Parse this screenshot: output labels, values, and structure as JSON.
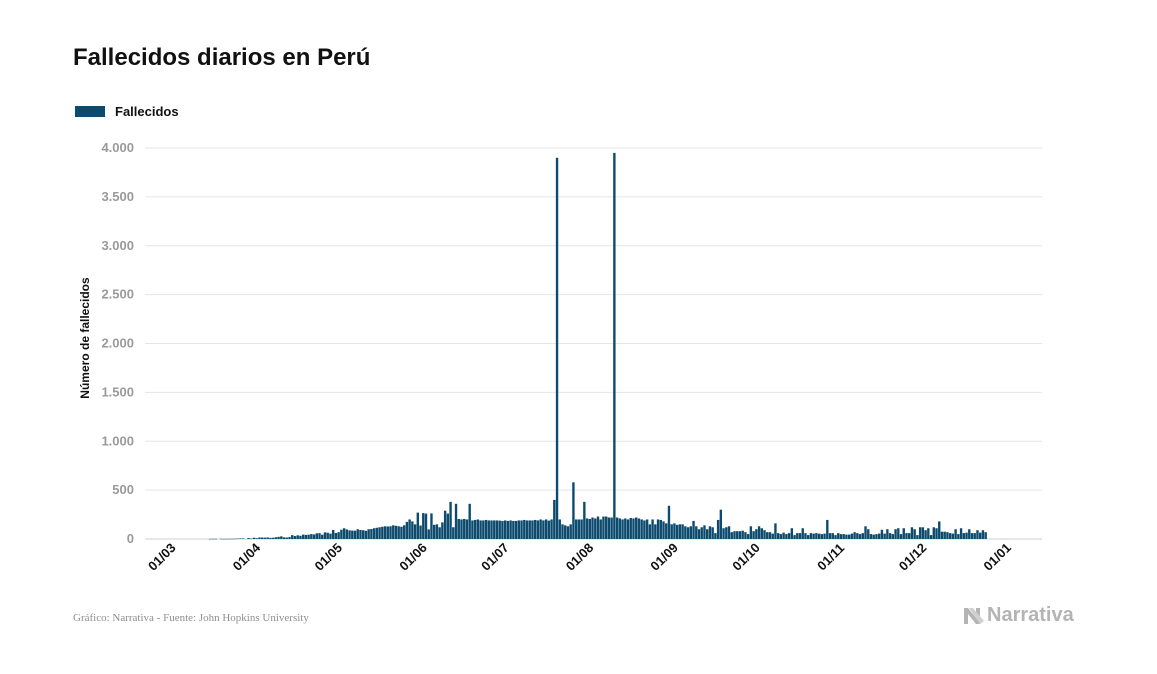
{
  "title": "Fallecidos diarios en Perú",
  "source": "Gráfico: Narrativa - Fuente: John Hopkins University",
  "brand": "Narrativa",
  "colors": {
    "bar": "#0c4a6e",
    "grid": "#e6e6e6",
    "tick": "#9a9a9a",
    "axis_label": "#111111"
  },
  "chart_data": {
    "type": "bar",
    "ylabel": "Número de fallecidos",
    "ylim": [
      0,
      4000
    ],
    "yticks": [
      0,
      500,
      1000,
      1500,
      2000,
      2500,
      3000,
      3500,
      4000
    ],
    "ytick_labels": [
      "0",
      "500",
      "1.000",
      "1.500",
      "2.000",
      "2.500",
      "3.000",
      "3.500",
      "4.000"
    ],
    "xtick_labels": [
      "01/03",
      "01/04",
      "01/05",
      "01/06",
      "01/07",
      "01/08",
      "01/09",
      "01/10",
      "01/11",
      "01/12",
      "01/01"
    ],
    "xtick_days": [
      0,
      31,
      61,
      92,
      122,
      153,
      184,
      214,
      245,
      275,
      306
    ],
    "grid": true,
    "legend": "top-left",
    "series": [
      {
        "name": "Fallecidos",
        "start_date": "2020-03-01",
        "values": [
          0,
          0,
          0,
          0,
          0,
          0,
          0,
          0,
          0,
          0,
          0,
          0,
          0,
          0,
          0,
          0,
          0,
          0,
          1,
          2,
          2,
          0,
          2,
          1,
          2,
          2,
          2,
          3,
          5,
          6,
          6,
          0,
          10,
          5,
          13,
          8,
          16,
          15,
          14,
          16,
          12,
          13,
          18,
          22,
          27,
          17,
          15,
          20,
          40,
          30,
          38,
          33,
          45,
          42,
          44,
          50,
          47,
          58,
          60,
          44,
          68,
          64,
          55,
          92,
          62,
          70,
          95,
          110,
          98,
          89,
          86,
          85,
          100,
          92,
          90,
          84,
          100,
          102,
          110,
          115,
          120,
          125,
          130,
          128,
          130,
          140,
          135,
          130,
          125,
          140,
          175,
          200,
          180,
          150,
          270,
          138,
          265,
          260,
          98,
          262,
          145,
          150,
          120,
          170,
          290,
          260,
          380,
          120,
          360,
          205,
          200,
          205,
          200,
          360,
          190,
          195,
          200,
          190,
          190,
          195,
          190,
          190,
          190,
          190,
          188,
          185,
          190,
          185,
          190,
          185,
          185,
          190,
          190,
          195,
          190,
          190,
          190,
          195,
          190,
          200,
          190,
          200,
          188,
          200,
          400,
          3900,
          200,
          150,
          140,
          130,
          150,
          580,
          200,
          200,
          200,
          380,
          210,
          205,
          220,
          210,
          230,
          200,
          230,
          230,
          220,
          220,
          3950,
          220,
          210,
          200,
          210,
          200,
          215,
          210,
          220,
          210,
          200,
          190,
          200,
          150,
          200,
          150,
          200,
          195,
          180,
          160,
          340,
          150,
          160,
          145,
          150,
          150,
          130,
          120,
          130,
          185,
          130,
          100,
          120,
          140,
          100,
          130,
          120,
          60,
          195,
          300,
          110,
          120,
          130,
          70,
          80,
          80,
          80,
          85,
          70,
          50,
          130,
          80,
          100,
          130,
          110,
          90,
          70,
          70,
          55,
          160,
          60,
          50,
          65,
          50,
          60,
          110,
          40,
          60,
          60,
          110,
          60,
          40,
          60,
          55,
          60,
          55,
          50,
          55,
          195,
          60,
          60,
          40,
          60,
          50,
          50,
          45,
          45,
          55,
          70,
          60,
          50,
          60,
          130,
          100,
          50,
          45,
          50,
          55,
          95,
          55,
          100,
          60,
          50,
          100,
          110,
          50,
          110,
          60,
          60,
          120,
          100,
          40,
          120,
          120,
          90,
          110,
          40,
          120,
          110,
          180,
          75,
          75,
          70,
          60,
          55,
          100,
          50,
          110,
          60,
          65,
          100,
          60,
          60,
          90,
          65,
          90,
          70
        ]
      }
    ]
  }
}
